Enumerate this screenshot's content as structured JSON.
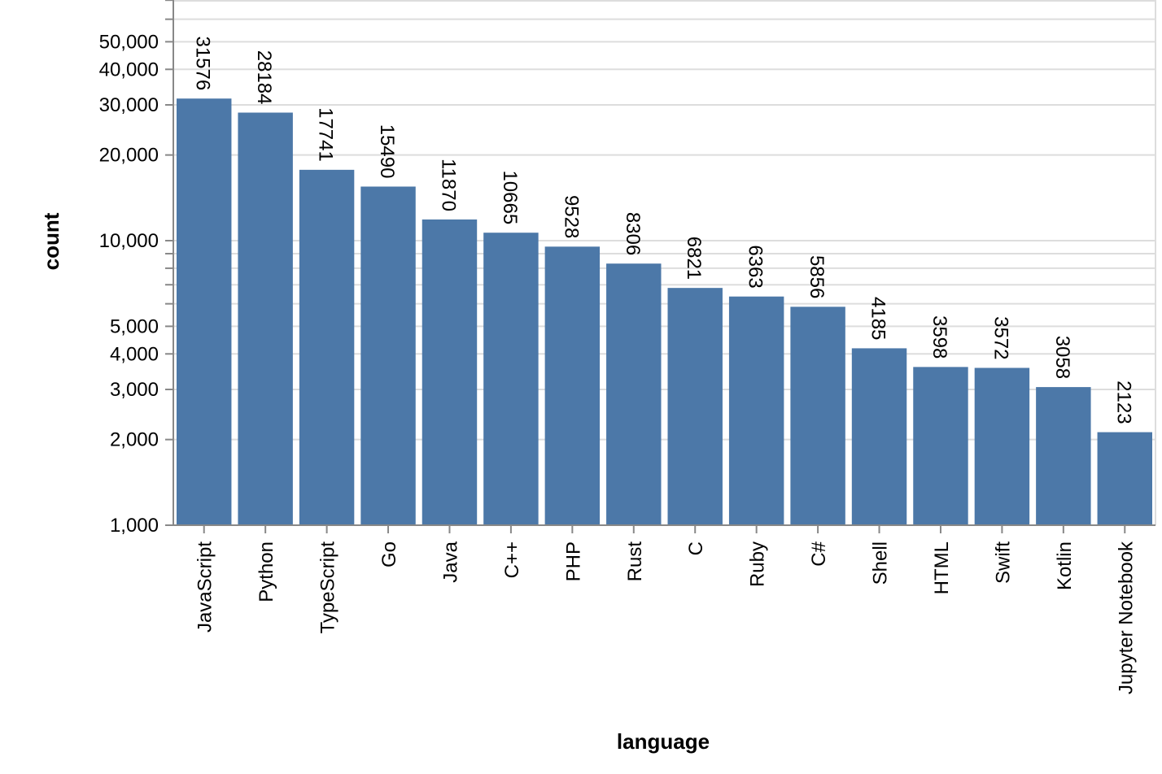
{
  "chart_data": {
    "type": "bar",
    "scale": "log",
    "categories": [
      "JavaScript",
      "Python",
      "TypeScript",
      "Go",
      "Java",
      "C++",
      "PHP",
      "Rust",
      "C",
      "Ruby",
      "C#",
      "Shell",
      "HTML",
      "Swift",
      "Kotlin",
      "Jupyter Notebook"
    ],
    "values": [
      31576,
      28184,
      17741,
      15490,
      11870,
      10665,
      9528,
      8306,
      6821,
      6363,
      5856,
      4185,
      3598,
      3572,
      3058,
      2123
    ],
    "xlabel": "language",
    "ylabel": "count",
    "ylim": [
      1000,
      70000
    ],
    "y_ticks": [
      {
        "value": 1000,
        "label": "1,000"
      },
      {
        "value": 2000,
        "label": "2,000"
      },
      {
        "value": 3000,
        "label": "3,000"
      },
      {
        "value": 4000,
        "label": "4,000"
      },
      {
        "value": 5000,
        "label": "5,000"
      },
      {
        "value": 10000,
        "label": "10,000"
      },
      {
        "value": 20000,
        "label": "20,000"
      },
      {
        "value": 30000,
        "label": "30,000"
      },
      {
        "value": 40000,
        "label": "40,000"
      },
      {
        "value": 50000,
        "label": "50,000"
      }
    ],
    "y_minor_ticks": [
      6000,
      7000,
      8000,
      9000,
      60000,
      70000
    ],
    "grid": true,
    "colors": {
      "bar": "#4c78a8",
      "grid": "#dddddd",
      "axis": "#888888"
    }
  }
}
